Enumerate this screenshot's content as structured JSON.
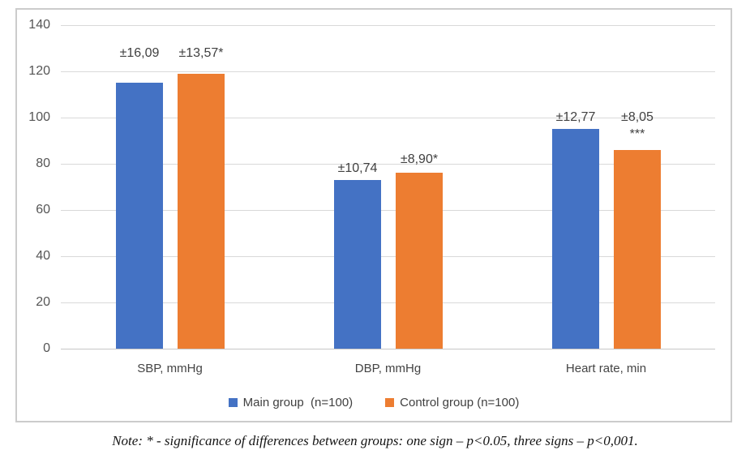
{
  "chart_data": {
    "type": "bar",
    "title": "",
    "categories": [
      "SBP, mmHg",
      "DBP, mmHg",
      "Heart rate, min"
    ],
    "series": [
      {
        "name": "Main group  (n=100)",
        "color": "#4472C4",
        "values": [
          115,
          73,
          95
        ],
        "bar_labels": [
          "±16,09",
          "±10,74",
          "±12,77"
        ]
      },
      {
        "name": "Control group (n=100)",
        "color": "#ED7D31",
        "values": [
          119,
          76,
          86
        ],
        "bar_labels": [
          "±13,57*",
          "±8,90*",
          "±8,05\n***"
        ]
      }
    ],
    "ylim": [
      0,
      140
    ],
    "yticks": [
      0,
      20,
      40,
      60,
      80,
      100,
      120,
      140
    ],
    "grid": true,
    "legend_position": "bottom",
    "xlabel": "",
    "ylabel": ""
  },
  "note": {
    "text": "Note: * - significance of differences between groups: one sign – p<0.05, three signs – p<0,001."
  },
  "colors": {
    "main_group": "#4472C4",
    "control_group": "#ED7D31",
    "gridline": "#D9D9D9",
    "axis_line": "#C7C7C7",
    "frame_border": "#CCCCCC",
    "label_text": "#404040"
  }
}
